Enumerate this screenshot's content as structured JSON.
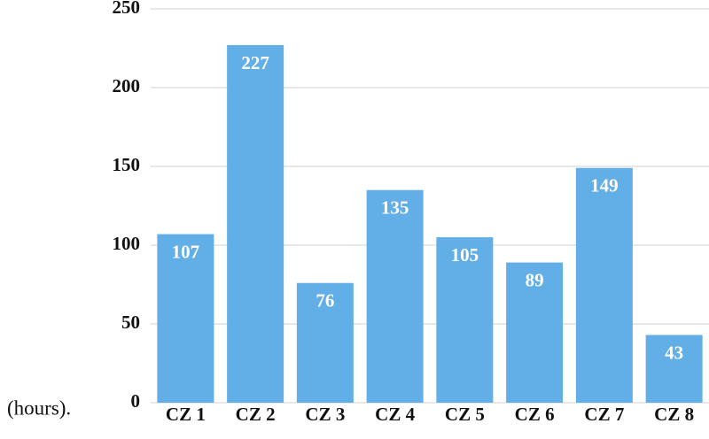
{
  "chart_data": {
    "type": "bar",
    "annotation": "(hours).",
    "categories": [
      "CZ 1",
      "CZ 2",
      "CZ 3",
      "CZ 4",
      "CZ 5",
      "CZ 6",
      "CZ 7",
      "CZ 8"
    ],
    "values": [
      107,
      227,
      76,
      135,
      105,
      89,
      149,
      43
    ],
    "color": "#62aee6",
    "ylim": [
      0,
      250
    ],
    "yticks": [
      0,
      50,
      100,
      150,
      200,
      250
    ],
    "grid": true
  }
}
